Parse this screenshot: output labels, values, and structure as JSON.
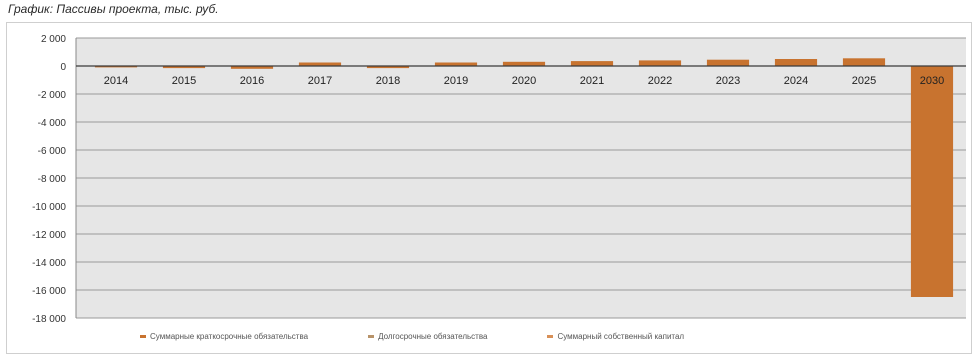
{
  "page": {
    "title": "График: Пассивы проекта, тыс. руб."
  },
  "chart_data": {
    "type": "bar",
    "stacked": true,
    "title": "График: Пассивы проекта, тыс. руб.",
    "xlabel": "",
    "ylabel": "",
    "ylim": [
      -18000,
      2000
    ],
    "yticks": [
      2000,
      0,
      -2000,
      -4000,
      -6000,
      -8000,
      -10000,
      -12000,
      -14000,
      -16000,
      -18000
    ],
    "ytick_labels": [
      "2 000",
      "0",
      "-2 000",
      "-4 000",
      "-6 000",
      "-8 000",
      "-10 000",
      "-12 000",
      "-14 000",
      "-16 000",
      "-18 000"
    ],
    "categories": [
      "2014",
      "2015",
      "2016",
      "2017",
      "2018",
      "2019",
      "2020",
      "2021",
      "2022",
      "2023",
      "2024",
      "2025",
      "2030"
    ],
    "series": [
      {
        "name": "Суммарные краткосрочные обязательства",
        "color": "#c8732f",
        "values": [
          -100,
          -150,
          -200,
          250,
          -150,
          250,
          300,
          350,
          400,
          450,
          500,
          550,
          -16500
        ]
      },
      {
        "name": "Долгосрочные обязательства",
        "color": "#b8936a",
        "values": [
          0,
          0,
          0,
          0,
          0,
          0,
          0,
          0,
          0,
          0,
          0,
          0,
          0
        ]
      },
      {
        "name": "Суммарный собственный капитал",
        "color": "#d89058",
        "values": [
          0,
          0,
          0,
          0,
          0,
          0,
          0,
          0,
          0,
          0,
          0,
          0,
          0
        ]
      }
    ],
    "grid": true,
    "legend_position": "bottom",
    "plot_background": "#e6e6e6",
    "gridline_color": "#9a9a9a"
  }
}
